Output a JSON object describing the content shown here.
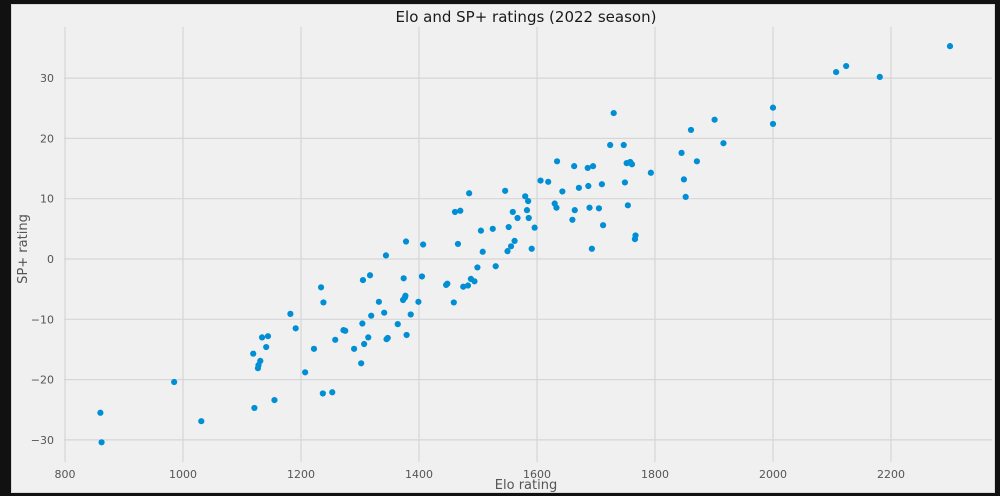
{
  "chart_data": {
    "type": "scatter",
    "title": "Elo and SP+ ratings (2022 season)",
    "xlabel": "Elo rating",
    "ylabel": "SP+ rating",
    "xlim": [
      777,
      2350
    ],
    "ylim": [
      -33.5,
      38.5
    ],
    "x_ticks": [
      800,
      1000,
      1200,
      1400,
      1600,
      1800,
      2000,
      2200
    ],
    "y_ticks": [
      -30,
      -20,
      -10,
      0,
      10,
      20,
      30
    ],
    "grid": true,
    "legend": null,
    "marker_color": "#008fd5",
    "points": [
      [
        860,
        -25.5
      ],
      [
        862,
        -30.4
      ],
      [
        985,
        -20.4
      ],
      [
        1031,
        -26.9
      ],
      [
        1119,
        -15.7
      ],
      [
        1121,
        -24.7
      ],
      [
        1127,
        -18.1
      ],
      [
        1128,
        -17.6
      ],
      [
        1131,
        -16.9
      ],
      [
        1134,
        -13.0
      ],
      [
        1141,
        -14.6
      ],
      [
        1144,
        -12.8
      ],
      [
        1155,
        -23.4
      ],
      [
        1182,
        -9.1
      ],
      [
        1191,
        -11.5
      ],
      [
        1207,
        -18.8
      ],
      [
        1222,
        -14.9
      ],
      [
        1234,
        -4.7
      ],
      [
        1237,
        -22.3
      ],
      [
        1238,
        -7.2
      ],
      [
        1253,
        -22.1
      ],
      [
        1258,
        -13.4
      ],
      [
        1272,
        -11.8
      ],
      [
        1275,
        -11.9
      ],
      [
        1290,
        -14.9
      ],
      [
        1302,
        -17.3
      ],
      [
        1304,
        -10.7
      ],
      [
        1305,
        -3.5
      ],
      [
        1307,
        -14.1
      ],
      [
        1314,
        -13.0
      ],
      [
        1317,
        -2.7
      ],
      [
        1319,
        -9.4
      ],
      [
        1332,
        -7.1
      ],
      [
        1341,
        -8.9
      ],
      [
        1344,
        0.6
      ],
      [
        1345,
        -13.3
      ],
      [
        1347,
        -13.1
      ],
      [
        1364,
        -10.8
      ],
      [
        1373,
        -6.8
      ],
      [
        1374,
        -3.2
      ],
      [
        1376,
        -6.4
      ],
      [
        1377,
        -6.1
      ],
      [
        1378,
        2.9
      ],
      [
        1379,
        -12.6
      ],
      [
        1386,
        -9.2
      ],
      [
        1399,
        -7.1
      ],
      [
        1405,
        -2.9
      ],
      [
        1407,
        2.4
      ],
      [
        1446,
        -4.3
      ],
      [
        1448,
        -4.1
      ],
      [
        1459,
        -7.2
      ],
      [
        1461,
        7.8
      ],
      [
        1466,
        2.5
      ],
      [
        1470,
        8.0
      ],
      [
        1475,
        -4.6
      ],
      [
        1483,
        -4.4
      ],
      [
        1485,
        10.9
      ],
      [
        1488,
        -3.3
      ],
      [
        1494,
        -3.7
      ],
      [
        1499,
        -1.4
      ],
      [
        1505,
        4.7
      ],
      [
        1508,
        1.2
      ],
      [
        1525,
        5.0
      ],
      [
        1530,
        -1.2
      ],
      [
        1546,
        11.3
      ],
      [
        1550,
        1.3
      ],
      [
        1552,
        5.3
      ],
      [
        1556,
        2.1
      ],
      [
        1559,
        7.8
      ],
      [
        1562,
        3.0
      ],
      [
        1567,
        6.8
      ],
      [
        1580,
        10.4
      ],
      [
        1583,
        8.1
      ],
      [
        1585,
        9.6
      ],
      [
        1586,
        6.8
      ],
      [
        1591,
        1.7
      ],
      [
        1596,
        5.2
      ],
      [
        1606,
        13.0
      ],
      [
        1619,
        12.8
      ],
      [
        1630,
        9.2
      ],
      [
        1633,
        8.5
      ],
      [
        1634,
        16.2
      ],
      [
        1643,
        11.2
      ],
      [
        1660,
        6.5
      ],
      [
        1663,
        15.4
      ],
      [
        1664,
        8.1
      ],
      [
        1671,
        11.8
      ],
      [
        1686,
        15.1
      ],
      [
        1687,
        12.1
      ],
      [
        1689,
        8.5
      ],
      [
        1693,
        1.7
      ],
      [
        1695,
        15.4
      ],
      [
        1705,
        8.4
      ],
      [
        1710,
        12.4
      ],
      [
        1712,
        5.6
      ],
      [
        1724,
        18.9
      ],
      [
        1730,
        24.2
      ],
      [
        1747,
        18.9
      ],
      [
        1749,
        12.7
      ],
      [
        1752,
        15.9
      ],
      [
        1754,
        8.9
      ],
      [
        1758,
        16.1
      ],
      [
        1761,
        15.7
      ],
      [
        1766,
        3.3
      ],
      [
        1767,
        3.9
      ],
      [
        1793,
        14.3
      ],
      [
        1845,
        17.6
      ],
      [
        1849,
        13.2
      ],
      [
        1852,
        10.3
      ],
      [
        1861,
        21.4
      ],
      [
        1871,
        16.2
      ],
      [
        1901,
        23.1
      ],
      [
        1916,
        19.2
      ],
      [
        2000,
        25.1
      ],
      [
        2000,
        22.4
      ],
      [
        2107,
        31.0
      ],
      [
        2124,
        32.0
      ],
      [
        2181,
        30.2
      ],
      [
        2300,
        35.3
      ]
    ]
  }
}
